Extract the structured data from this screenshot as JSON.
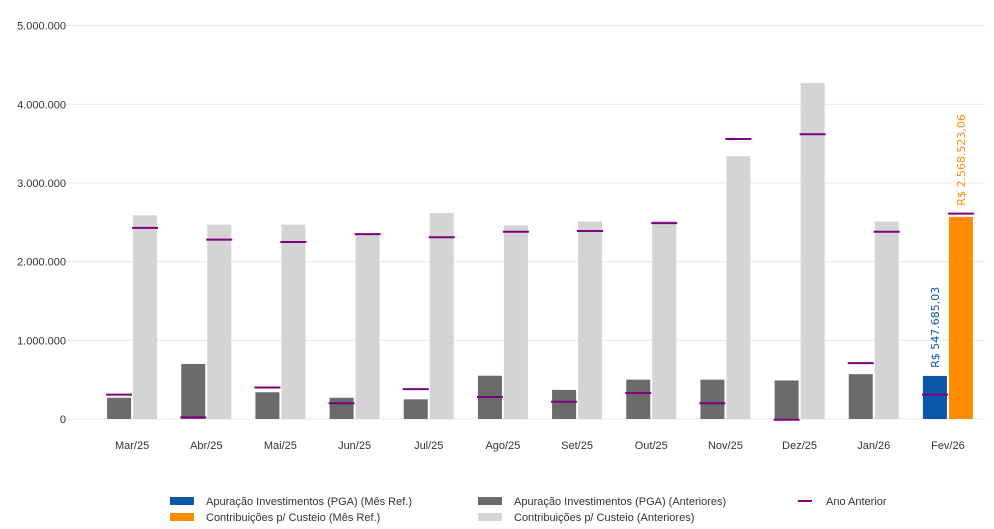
{
  "chart_data": {
    "type": "bar",
    "categories": [
      "Mar/25",
      "Abr/25",
      "Mai/25",
      "Jun/25",
      "Jul/25",
      "Ago/25",
      "Set/25",
      "Out/25",
      "Nov/25",
      "Dez/25",
      "Jan/26",
      "Fev/26"
    ],
    "ylim": [
      0,
      5250000
    ],
    "yticks": [
      0,
      1000000,
      2000000,
      3000000,
      4000000,
      5000000
    ],
    "ytick_labels": [
      "0",
      "1.000.000",
      "2.000.000",
      "3.000.000",
      "4.000.000",
      "5.000.000"
    ],
    "grid": true,
    "legend_position": "bottom",
    "series": [
      {
        "key": "inv_ref",
        "name": "Apuração Investimentos (PGA) (Mês Ref.)",
        "slot": "left",
        "color": "#0a58a8",
        "values": [
          null,
          null,
          null,
          null,
          null,
          null,
          null,
          null,
          null,
          null,
          null,
          547685.03
        ]
      },
      {
        "key": "inv_prev",
        "name": "Apuração Investimentos (PGA) (Anteriores)",
        "slot": "left",
        "color": "#6b6b6b",
        "values": [
          270000,
          700000,
          340000,
          270000,
          250000,
          550000,
          370000,
          500000,
          500000,
          490000,
          570000,
          null
        ]
      },
      {
        "key": "cont_ref",
        "name": "Contribuições p/ Custeio (Mês Ref.)",
        "slot": "right",
        "color": "#ff8c00",
        "values": [
          null,
          null,
          null,
          null,
          null,
          null,
          null,
          null,
          null,
          null,
          null,
          2568523.06
        ]
      },
      {
        "key": "cont_prev",
        "name": "Contribuições p/ Custeio (Anteriores)",
        "slot": "right",
        "color": "#d4d4d4",
        "values": [
          2590000,
          2470000,
          2470000,
          2340000,
          2620000,
          2460000,
          2510000,
          2520000,
          3340000,
          4270000,
          2510000,
          null
        ]
      }
    ],
    "previous_year": {
      "name": "Ano Anterior",
      "color": "#800080",
      "left": [
        310000,
        20000,
        400000,
        200000,
        380000,
        280000,
        220000,
        330000,
        200000,
        -10000,
        710000,
        310000
      ],
      "right": [
        2430000,
        2280000,
        2250000,
        2350000,
        2310000,
        2380000,
        2390000,
        2490000,
        3560000,
        3620000,
        2380000,
        2610000
      ]
    },
    "data_labels": [
      {
        "series": "inv_ref",
        "index": 11,
        "text": "R$ 547.685,03",
        "color": "#0a58a8"
      },
      {
        "series": "cont_ref",
        "index": 11,
        "text": "R$ 2.568.523,06",
        "color": "#ff8c00"
      }
    ]
  },
  "legend": {
    "items": [
      {
        "label": "Apuração Investimentos (PGA) (Mês Ref.)",
        "color": "#0a58a8",
        "kind": "box"
      },
      {
        "label": "Apuração Investimentos (PGA) (Anteriores)",
        "color": "#6b6b6b",
        "kind": "box"
      },
      {
        "label": "Ano Anterior",
        "color": "#800080",
        "kind": "line"
      },
      {
        "label": "Contribuições p/ Custeio (Mês Ref.)",
        "color": "#ff8c00",
        "kind": "box"
      },
      {
        "label": "Contribuições p/ Custeio (Anteriores)",
        "color": "#d4d4d4",
        "kind": "box"
      }
    ]
  }
}
